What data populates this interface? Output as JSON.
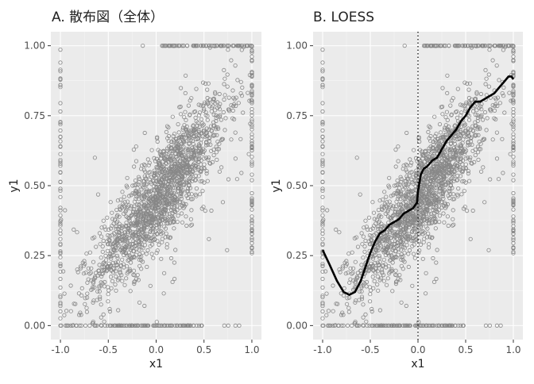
{
  "chart_data": [
    {
      "type": "scatter",
      "title": "A. 散布図（全体）",
      "xlabel": "x1",
      "ylabel": "y1",
      "xlim": [
        -1.0,
        1.0
      ],
      "ylim": [
        0.0,
        1.0
      ],
      "x_ticks": [
        "-1.0",
        "-0.5",
        "0.0",
        "0.5",
        "1.0"
      ],
      "y_ticks": [
        "0.00",
        "0.25",
        "0.50",
        "0.75",
        "1.00"
      ],
      "grid": true,
      "marker": "open circle",
      "point_color": "#888888",
      "description_points": "dense positive cloud centred near y = 0.45 + 0.42*x1, plus rows of points at y = 0 and y = 1 and columns at x1 = -1 and x1 = 1"
    },
    {
      "type": "scatter",
      "title": "B. LOESS",
      "xlabel": "x1",
      "ylabel": "y1",
      "xlim": [
        -1.0,
        1.0
      ],
      "ylim": [
        0.0,
        1.0
      ],
      "x_ticks": [
        "-1.0",
        "-0.5",
        "0.0",
        "0.5",
        "1.0"
      ],
      "y_ticks": [
        "0.00",
        "0.25",
        "0.50",
        "0.75",
        "1.00"
      ],
      "grid": true,
      "marker": "open circle",
      "point_color": "#888888",
      "reference_line": {
        "x": 0.0,
        "style": "dotted"
      },
      "loess_curve": {
        "x": [
          -1.0,
          -0.93,
          -0.85,
          -0.78,
          -0.72,
          -0.66,
          -0.6,
          -0.55,
          -0.5,
          -0.45,
          -0.4,
          -0.35,
          -0.3,
          -0.25,
          -0.2,
          -0.15,
          -0.1,
          -0.05,
          -0.01,
          0.0,
          0.03,
          0.06,
          0.1,
          0.15,
          0.2,
          0.25,
          0.3,
          0.35,
          0.4,
          0.45,
          0.5,
          0.55,
          0.6,
          0.65,
          0.7,
          0.75,
          0.8,
          0.85,
          0.9,
          0.95,
          0.98,
          1.0
        ],
        "y": [
          0.27,
          0.22,
          0.16,
          0.12,
          0.11,
          0.12,
          0.16,
          0.21,
          0.26,
          0.3,
          0.33,
          0.34,
          0.36,
          0.37,
          0.38,
          0.4,
          0.41,
          0.42,
          0.44,
          0.48,
          0.54,
          0.56,
          0.57,
          0.59,
          0.6,
          0.63,
          0.66,
          0.68,
          0.7,
          0.73,
          0.75,
          0.78,
          0.8,
          0.8,
          0.81,
          0.82,
          0.83,
          0.85,
          0.87,
          0.89,
          0.89,
          0.88
        ],
        "color": "#000000"
      },
      "description_points": "same data as panel A"
    }
  ]
}
